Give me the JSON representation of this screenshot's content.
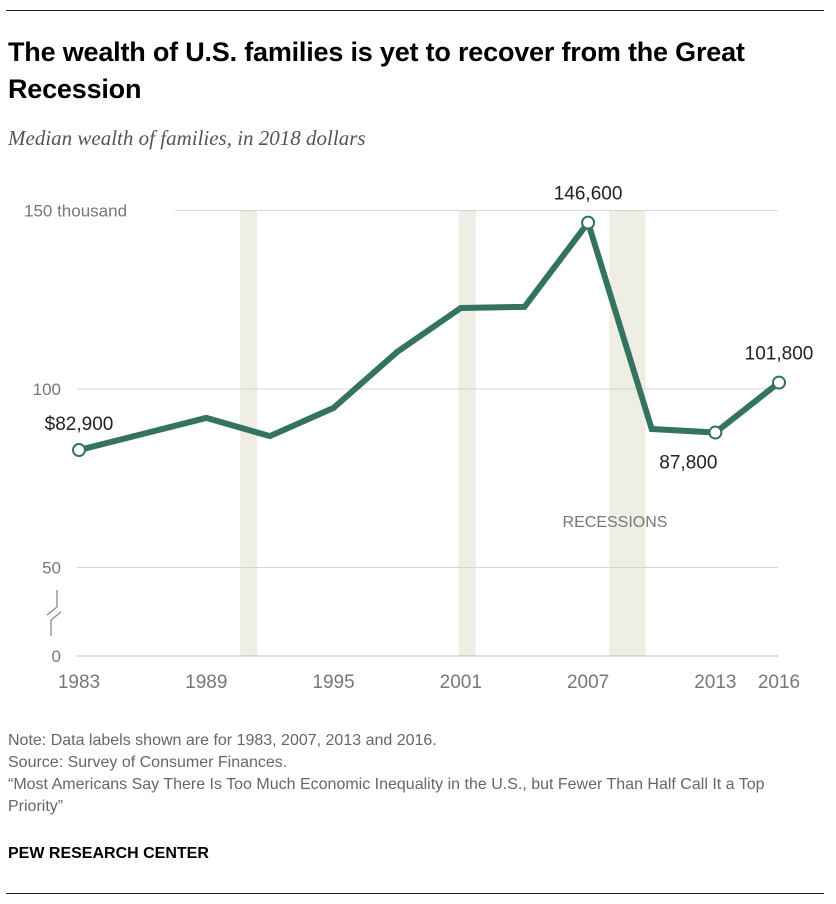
{
  "title": "The wealth of U.S. families is yet to recover from the Great Recession",
  "subtitle": "Median wealth of families, in 2018 dollars",
  "chart_data": {
    "type": "line",
    "x": [
      1983,
      1989,
      1992,
      1995,
      1998,
      2001,
      2004,
      2007,
      2010,
      2013,
      2016
    ],
    "series": [
      {
        "values": [
          82.9,
          91.9,
          86.8,
          94.7,
          110.4,
          122.7,
          123.0,
          146.6,
          88.8,
          87.8,
          101.8
        ],
        "color": "#33735f"
      }
    ],
    "data_labels": [
      {
        "x": 1983,
        "text": "$82,900"
      },
      {
        "x": 2007,
        "text": "146,600"
      },
      {
        "x": 2013,
        "text": "87,800"
      },
      {
        "x": 2016,
        "text": "101,800"
      }
    ],
    "recessions": [
      [
        1990.6,
        1991.4
      ],
      [
        2000.9,
        2001.7
      ],
      [
        2008.0,
        2009.7
      ]
    ],
    "recession_label": "RECESSIONS",
    "recession_color": "#efeee4",
    "ylim": [
      0,
      150
    ],
    "y_axis_break": true,
    "y_ticks": [
      {
        "value": 150,
        "label": "150 thousand"
      },
      {
        "value": 100,
        "label": "100"
      },
      {
        "value": 50,
        "label": "50"
      },
      {
        "value": 0,
        "label": "0"
      }
    ],
    "x_ticks": [
      1983,
      1989,
      1995,
      2001,
      2007,
      2013,
      2016
    ],
    "x_tick_labels": [
      "1983",
      "1989",
      "1995",
      "2001",
      "2007",
      "2013",
      "2016"
    ],
    "grid": true
  },
  "notes": [
    "Note: Data labels shown are for 1983, 2007, 2013 and 2016.",
    "Source: Survey of Consumer Finances.",
    "“Most Americans Say There Is Too Much Economic Inequality in the U.S., but Fewer Than Half Call It a Top Priority”"
  ],
  "brand": "PEW RESEARCH CENTER"
}
